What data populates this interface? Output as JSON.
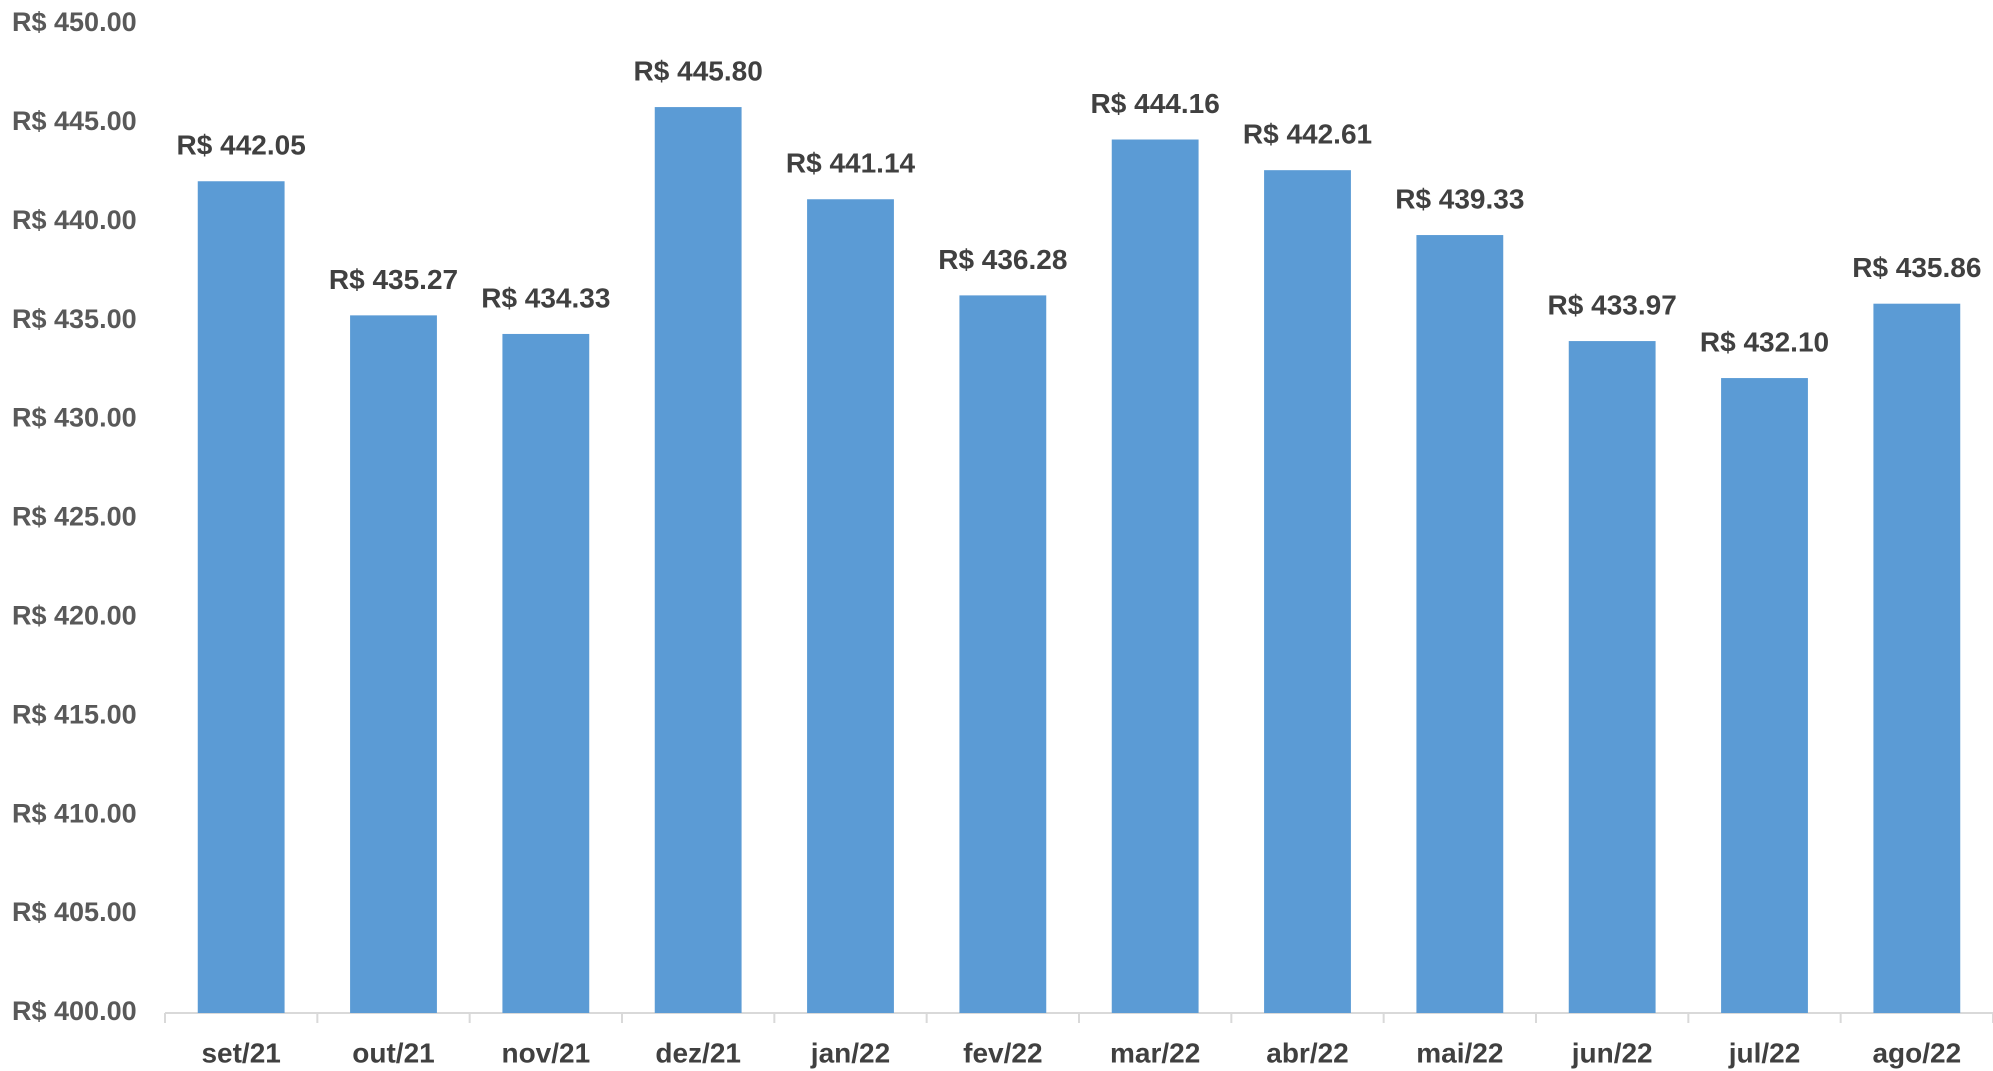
{
  "chart_data": {
    "type": "bar",
    "categories": [
      "set/21",
      "out/21",
      "nov/21",
      "dez/21",
      "jan/22",
      "fev/22",
      "mar/22",
      "abr/22",
      "mai/22",
      "jun/22",
      "jul/22",
      "ago/22"
    ],
    "values": [
      442.05,
      435.27,
      434.33,
      445.8,
      441.14,
      436.28,
      444.16,
      442.61,
      439.33,
      433.97,
      432.1,
      435.86
    ],
    "value_labels": [
      "R$ 442.05",
      "R$ 435.27",
      "R$ 434.33",
      "R$ 445.80",
      "R$ 441.14",
      "R$ 436.28",
      "R$ 444.16",
      "R$ 442.61",
      "R$ 439.33",
      "R$ 433.97",
      "R$ 432.10",
      "R$ 435.86"
    ],
    "color": "#5b9bd5",
    "ylim": [
      400,
      450
    ],
    "yticks": [
      {
        "value": 400,
        "label": "R$ 400.00"
      },
      {
        "value": 405,
        "label": "R$ 405.00"
      },
      {
        "value": 410,
        "label": "R$ 410.00"
      },
      {
        "value": 415,
        "label": "R$ 415.00"
      },
      {
        "value": 420,
        "label": "R$ 420.00"
      },
      {
        "value": 425,
        "label": "R$ 425.00"
      },
      {
        "value": 430,
        "label": "R$ 430.00"
      },
      {
        "value": 435,
        "label": "R$ 435.00"
      },
      {
        "value": 440,
        "label": "R$ 440.00"
      },
      {
        "value": 445,
        "label": "R$ 445.00"
      },
      {
        "value": 450,
        "label": "R$ 450.00"
      }
    ],
    "grid": false
  }
}
